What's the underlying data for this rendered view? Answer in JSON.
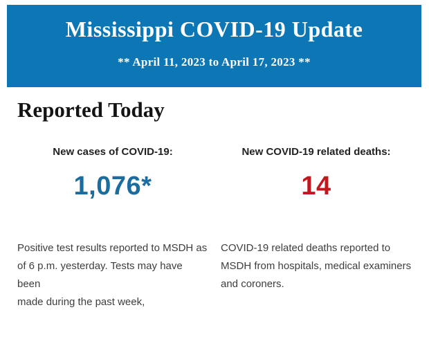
{
  "colors": {
    "banner_blue": "#0d76b4",
    "cases_value_blue": "#1b6c9f",
    "deaths_value_red": "#c11820"
  },
  "header": {
    "title": "Mississippi COVID-19 Update",
    "date_range": "** April 11, 2023 to April 17, 2023 **"
  },
  "section": {
    "heading": "Reported Today"
  },
  "stats": {
    "cases": {
      "label": "New cases of COVID-19:",
      "value": "1,076*",
      "description_lines": [
        "Positive test results reported to MSDH as",
        "of 6 p.m. yesterday. Tests may have been",
        "made during the past week,"
      ]
    },
    "deaths": {
      "label": "New COVID-19 related deaths:",
      "value": "14",
      "description_lines": [
        "COVID-19 related deaths reported to",
        "MSDH from hospitals, medical examiners",
        "and coroners."
      ]
    }
  }
}
